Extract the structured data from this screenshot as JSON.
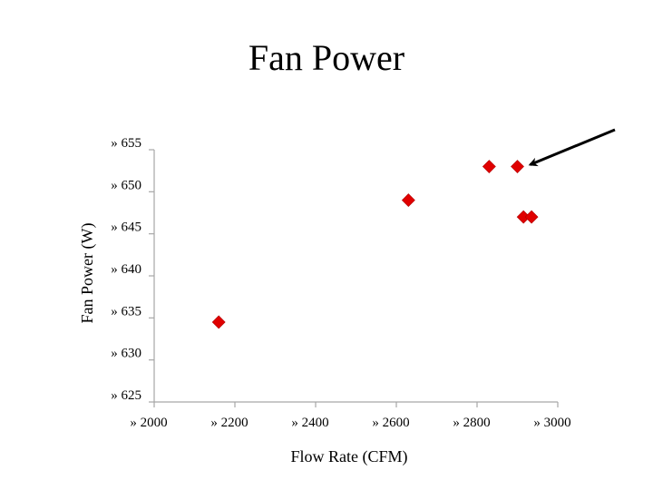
{
  "chart_data": {
    "type": "scatter",
    "title": "Fan Power",
    "xlabel": "Flow Rate (CFM)",
    "ylabel": "Fan Power (W)",
    "xlim": [
      2000,
      3000
    ],
    "ylim": [
      625,
      655
    ],
    "x_ticks": [
      2000,
      2200,
      2400,
      2600,
      2800,
      3000
    ],
    "y_ticks": [
      625,
      630,
      635,
      640,
      645,
      650,
      655
    ],
    "x_tick_labels": [
      "» 2000",
      "» 2200",
      "» 2400",
      "» 2600",
      "» 2800",
      "» 3000"
    ],
    "y_tick_labels": [
      "» 625",
      "» 630",
      "» 635",
      "» 640",
      "» 645",
      "» 650",
      "» 655"
    ],
    "grid": false,
    "series": [
      {
        "marker": "diamond",
        "color": "#e00000",
        "points": [
          {
            "x": 2160,
            "y": 634.5
          },
          {
            "x": 2630,
            "y": 649
          },
          {
            "x": 2830,
            "y": 653
          },
          {
            "x": 2900,
            "y": 653
          },
          {
            "x": 2915,
            "y": 647
          },
          {
            "x": 2935,
            "y": 647
          }
        ]
      }
    ],
    "annotations": [
      {
        "type": "arrow",
        "points_to": {
          "x": 2900,
          "y": 653
        },
        "color": "#000000"
      }
    ]
  }
}
